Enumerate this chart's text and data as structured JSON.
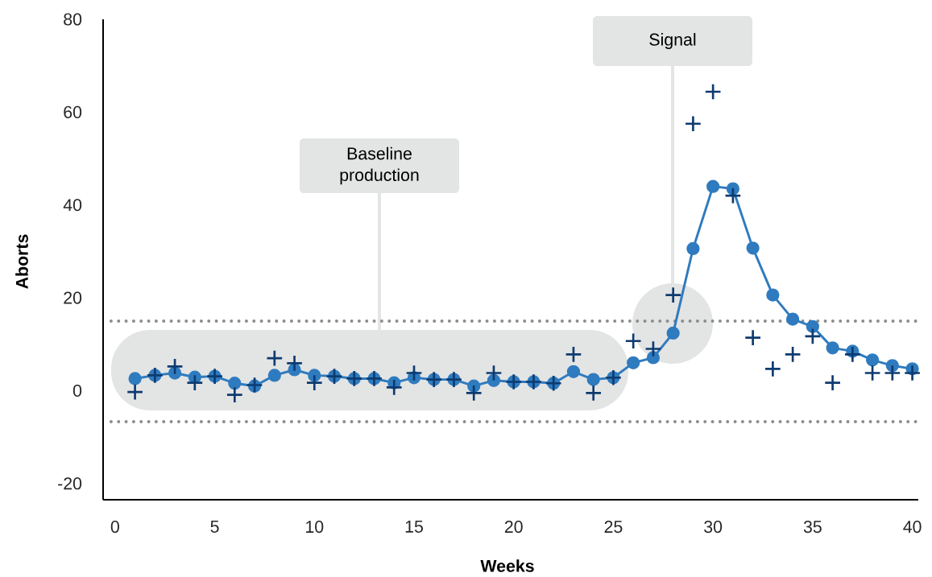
{
  "chart_data": {
    "type": "line",
    "xlabel": "Weeks",
    "ylabel": "Aborts",
    "x": [
      1,
      2,
      3,
      4,
      5,
      6,
      7,
      8,
      9,
      10,
      11,
      12,
      13,
      14,
      15,
      16,
      17,
      18,
      19,
      20,
      21,
      22,
      23,
      24,
      25,
      26,
      27,
      28,
      29,
      30,
      31,
      32,
      33,
      34,
      35,
      36,
      37,
      38,
      39,
      40
    ],
    "series": [
      {
        "type": "scatter",
        "marker": "cross",
        "color": "#0d3b70",
        "values": [
          -0.3,
          3.3,
          5.2,
          1.7,
          3.1,
          -0.9,
          1.2,
          7.0,
          5.9,
          1.7,
          3.1,
          2.6,
          2.6,
          0.7,
          3.8,
          2.4,
          2.4,
          -0.5,
          3.8,
          1.9,
          1.9,
          1.6,
          7.8,
          -0.5,
          2.8,
          10.7,
          9.0,
          20.6,
          57.5,
          64.4,
          42.0,
          11.4,
          4.7,
          7.8,
          11.7,
          1.7,
          7.8,
          3.8,
          3.8,
          3.8
        ]
      },
      {
        "marker": "circle",
        "line_style": "solid",
        "color": "#2f7bbf",
        "values": [
          2.6,
          3.3,
          3.8,
          2.9,
          3.1,
          1.6,
          1.0,
          3.3,
          4.5,
          3.3,
          3.1,
          2.6,
          2.6,
          1.7,
          2.8,
          2.4,
          2.4,
          1.0,
          2.2,
          1.9,
          1.9,
          1.6,
          4.1,
          2.4,
          2.8,
          6.0,
          7.1,
          12.4,
          30.6,
          44.0,
          43.5,
          30.7,
          20.6,
          15.4,
          13.8,
          9.2,
          8.5,
          6.6,
          5.4,
          4.7
        ]
      }
    ],
    "xlim": [
      -0.6,
      40.3
    ],
    "ylim": [
      -23.5,
      80
    ],
    "xticks": [
      0,
      5,
      10,
      15,
      20,
      25,
      30,
      35,
      40
    ],
    "yticks": [
      -20,
      0,
      20,
      40,
      60,
      80
    ],
    "ref_lines": [
      {
        "axis": "y",
        "value": 15,
        "color": "#8c8c8c",
        "line_style": "dotted"
      },
      {
        "axis": "y",
        "value": -6.7,
        "color": "#8c8c8c",
        "line_style": "dotted"
      }
    ],
    "annotations": [
      "Baseline production",
      "Signal"
    ],
    "grid": false
  }
}
